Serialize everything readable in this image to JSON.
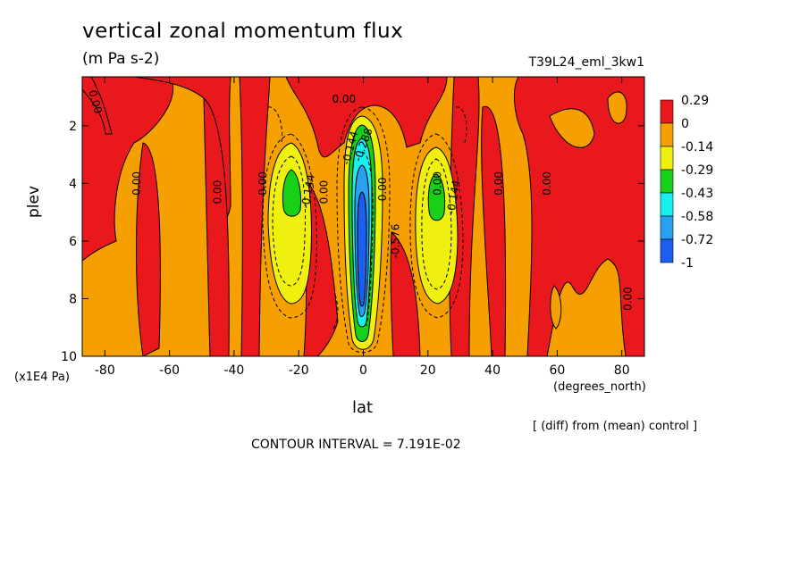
{
  "title": "vertical zonal momentum flux",
  "units": "(m Pa s-2)",
  "run_name": "T39L24_eml_3kw1",
  "axis_y_label": "plev",
  "axis_y_unit": "(x1E4 Pa)",
  "axis_x_label": "lat",
  "axis_x_unit": "(degrees_north)",
  "note": "[ (diff) from (mean) control ]",
  "contour_interval_text": "CONTOUR INTERVAL = 7.191E-02",
  "chart_data": {
    "type": "heatmap",
    "title": "vertical zonal momentum flux",
    "xlabel": "lat",
    "ylabel": "plev",
    "x_ticks": [
      -80,
      -60,
      -40,
      -20,
      0,
      20,
      40,
      60,
      80
    ],
    "y_ticks": [
      2,
      4,
      6,
      8,
      10
    ],
    "xlim": [
      -87,
      87
    ],
    "ylim": [
      10,
      0.3
    ],
    "colorbar": {
      "levels": [
        "0.29",
        "0",
        "-0.14",
        "-0.29",
        "-0.43",
        "-0.58",
        "-0.72",
        "-1"
      ],
      "colors": [
        "#e8181c",
        "#f5a000",
        "#f0f010",
        "#18d018",
        "#18f0f0",
        "#2aa0f0",
        "#1a5ff0"
      ]
    },
    "contour_labels": [
      {
        "text": "0.00",
        "x": -84,
        "y": 1.2,
        "rot": 75
      },
      {
        "text": "0.00",
        "x": -69,
        "y": 4.0,
        "rot": -90
      },
      {
        "text": "0.00",
        "x": -44,
        "y": 4.3,
        "rot": -90
      },
      {
        "text": "0.00",
        "x": -30,
        "y": 4.0,
        "rot": -90
      },
      {
        "text": "-0.144",
        "x": -16,
        "y": 4.3,
        "rot": -80
      },
      {
        "text": "0.00",
        "x": -11,
        "y": 4.3,
        "rot": -90
      },
      {
        "text": "0.00",
        "x": -6,
        "y": 1.2,
        "rot": 0
      },
      {
        "text": "-0.144",
        "x": -3,
        "y": 2.8,
        "rot": -75
      },
      {
        "text": "-0.288",
        "x": 1,
        "y": 2.7,
        "rot": -70
      },
      {
        "text": "0.00",
        "x": 7,
        "y": 4.2,
        "rot": -90
      },
      {
        "text": "-0.576",
        "x": 11,
        "y": 6.0,
        "rot": -90
      },
      {
        "text": "0.00",
        "x": 24,
        "y": 4.0,
        "rot": -90
      },
      {
        "text": "-0.144",
        "x": 29,
        "y": 4.5,
        "rot": -80
      },
      {
        "text": "0.00",
        "x": 43,
        "y": 4.0,
        "rot": -90
      },
      {
        "text": "0.00",
        "x": 58,
        "y": 4.0,
        "rot": -90
      },
      {
        "text": "0.00",
        "x": 83,
        "y": 8.0,
        "rot": -90
      }
    ]
  }
}
